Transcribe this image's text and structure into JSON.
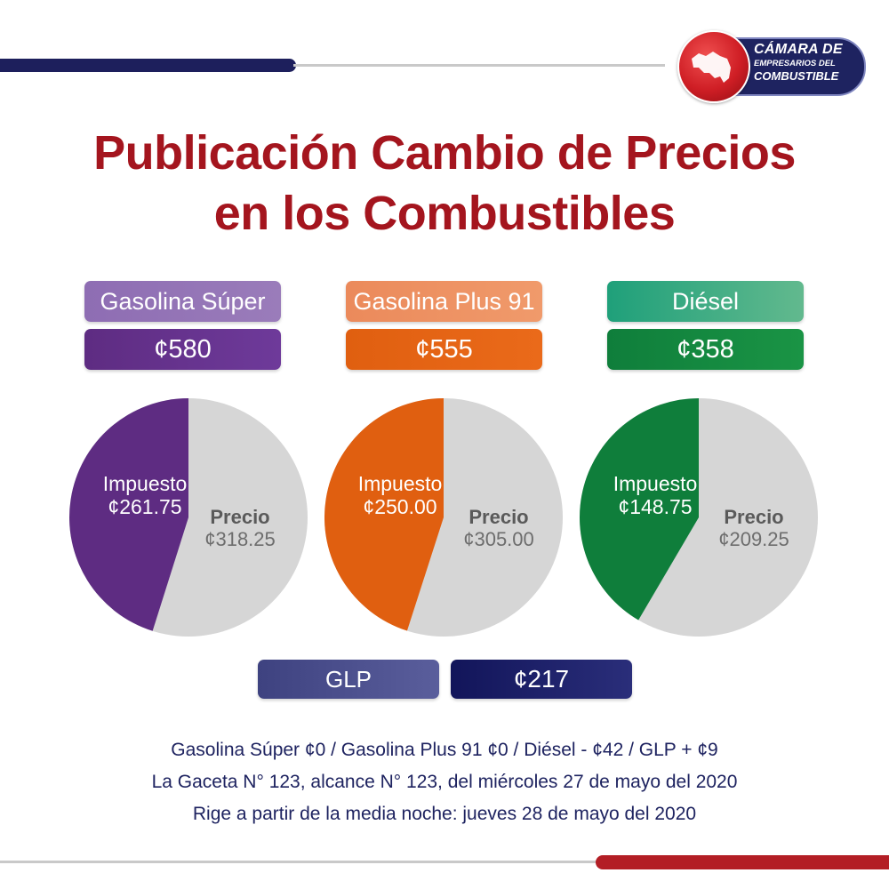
{
  "logo": {
    "line1": "CÁMARA DE",
    "line2": "EMPRESARIOS DEL",
    "line3": "COMBUSTIBLE",
    "colors": {
      "circle": "#cf1e25",
      "pill": "#1e2360"
    }
  },
  "title": {
    "line1": "Publicación Cambio de Precios",
    "line2": "en los Combustibles",
    "color": "#a4151e"
  },
  "fuels": [
    {
      "name": "Gasolina Súper",
      "price": "¢580"
    },
    {
      "name": "Gasolina Plus 91",
      "price": "¢555"
    },
    {
      "name": "Diésel",
      "price": "¢358"
    }
  ],
  "glp": {
    "name": "GLP",
    "price": "¢217"
  },
  "chart_data": [
    {
      "type": "pie",
      "slices": [
        {
          "label": "Impuesto",
          "display": "¢261.75",
          "value": 261.75,
          "color": "#5e2c82"
        },
        {
          "label": "Precio",
          "display": "¢318.25",
          "value": 318.25,
          "color": "#d6d6d6"
        }
      ]
    },
    {
      "type": "pie",
      "slices": [
        {
          "label": "Impuesto",
          "display": "¢250.00",
          "value": 250.0,
          "color": "#e05f10"
        },
        {
          "label": "Precio",
          "display": "¢305.00",
          "value": 305.0,
          "color": "#d6d6d6"
        }
      ]
    },
    {
      "type": "pie",
      "slices": [
        {
          "label": "Impuesto",
          "display": "¢148.75",
          "value": 148.75,
          "color": "#0f7e3b"
        },
        {
          "label": "Precio",
          "display": "¢209.25",
          "value": 209.25,
          "color": "#d6d6d6"
        }
      ]
    }
  ],
  "footer": {
    "line1": "Gasolina Súper ¢0 / Gasolina Plus 91 ¢0 / Diésel - ¢42 / GLP + ¢9",
    "line2": "La Gaceta N° 123, alcance N° 123, del miércoles 27 de mayo del 2020",
    "line3": "Rige a partir de la media noche: jueves 28 de mayo del 2020"
  }
}
